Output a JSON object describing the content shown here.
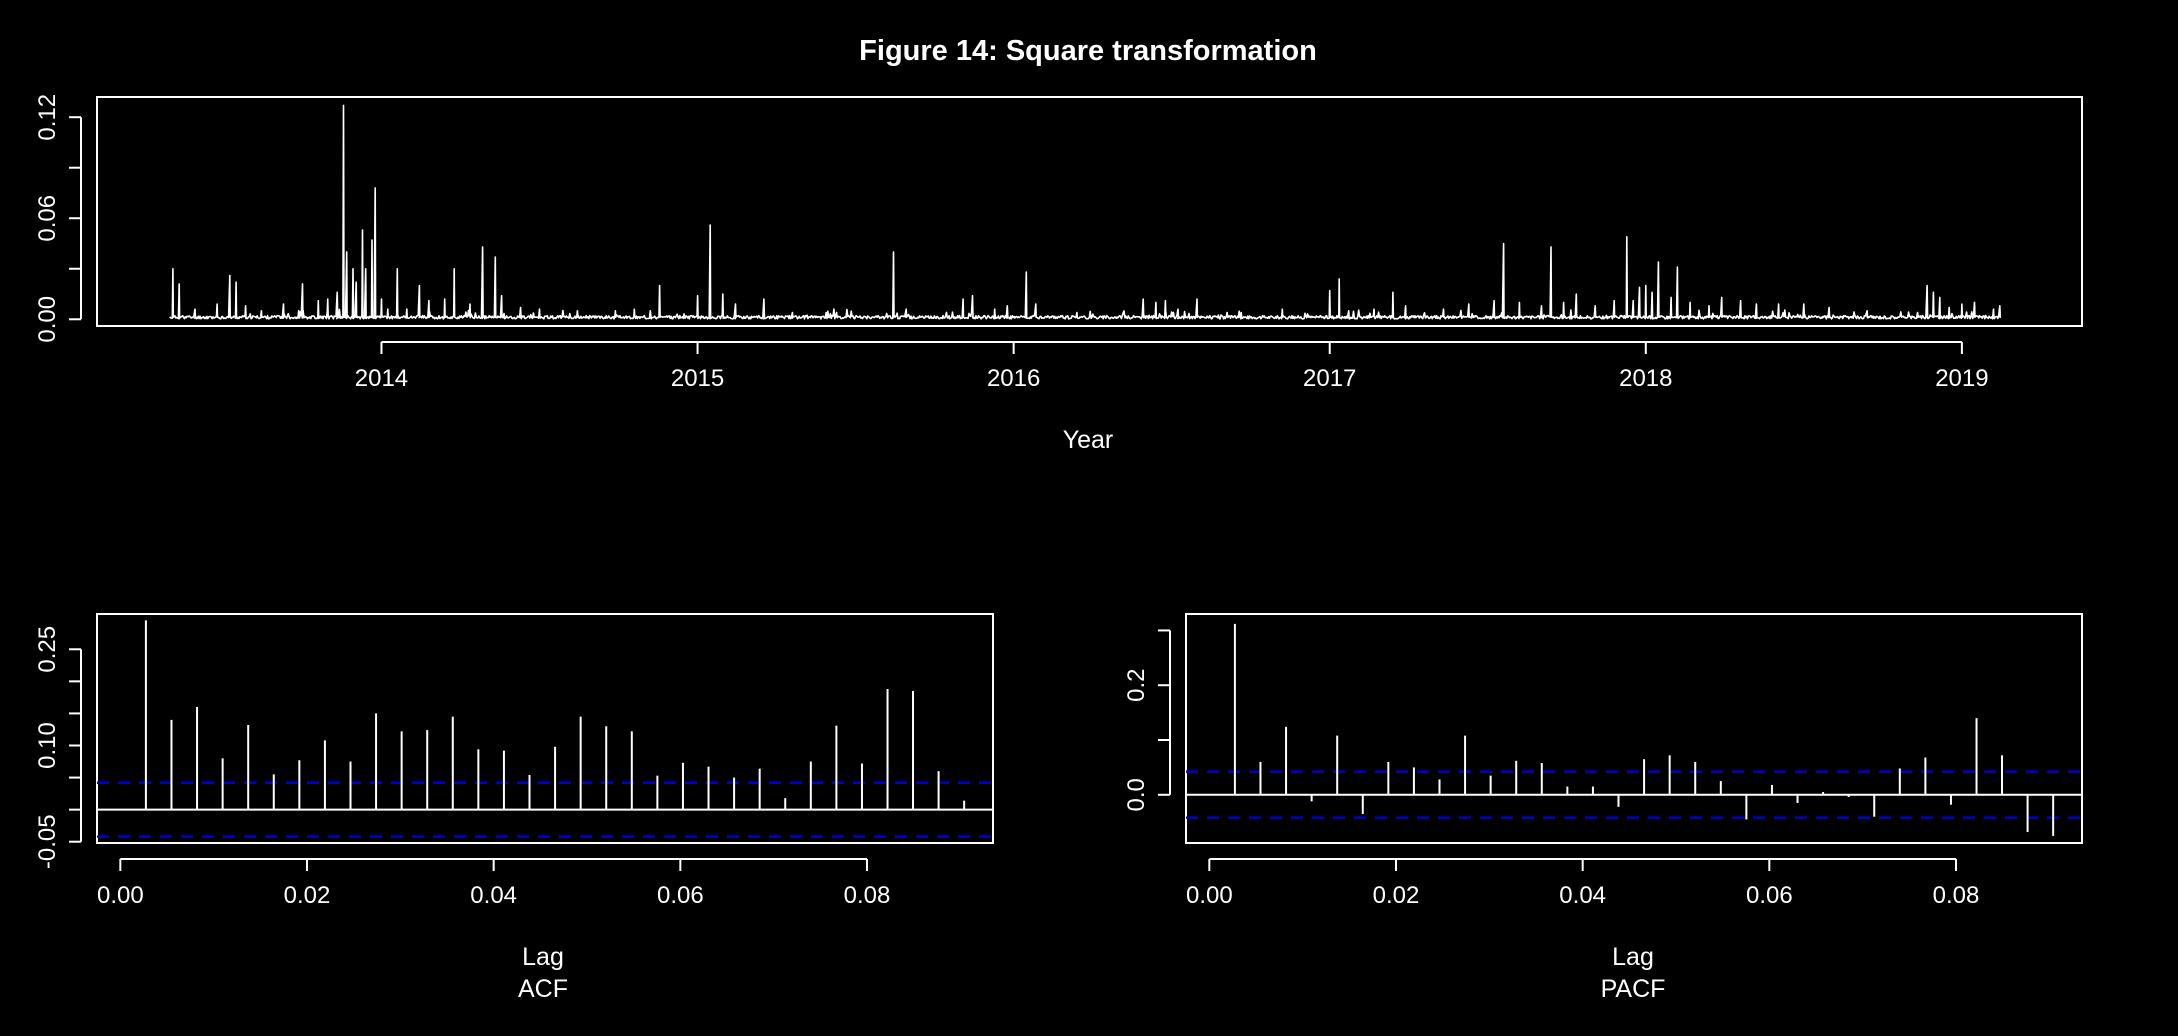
{
  "figure": {
    "title": "Figure  14: Square transformation",
    "background": "#000000",
    "foreground": "#ffffff",
    "ci_color": "#0000cc"
  },
  "chart_data": [
    {
      "type": "line",
      "name": "series",
      "xlabel": "Year",
      "ylabel": "",
      "xlim": [
        2013.1,
        2019.38
      ],
      "ylim": [
        -0.004,
        0.132
      ],
      "xticks": [
        2014,
        2015,
        2016,
        2017,
        2018,
        2019
      ],
      "xtick_labels": [
        "2014",
        "2015",
        "2016",
        "2017",
        "2018",
        "2019"
      ],
      "yticks": [
        0.0,
        0.03,
        0.06,
        0.09,
        0.12
      ],
      "ytick_labels": [
        "0.00",
        "",
        "0.06",
        "",
        "0.12"
      ],
      "x_range": [
        2013.33,
        2019.12
      ],
      "baseline": 0.0012,
      "spikes": [
        [
          2013.34,
          0.03
        ],
        [
          2013.36,
          0.021
        ],
        [
          2013.41,
          0.006
        ],
        [
          2013.48,
          0.009
        ],
        [
          2013.52,
          0.026
        ],
        [
          2013.54,
          0.022
        ],
        [
          2013.57,
          0.008
        ],
        [
          2013.62,
          0.005
        ],
        [
          2013.69,
          0.009
        ],
        [
          2013.75,
          0.021
        ],
        [
          2013.8,
          0.011
        ],
        [
          2013.83,
          0.012
        ],
        [
          2013.86,
          0.016
        ],
        [
          2013.88,
          0.127
        ],
        [
          2013.89,
          0.04
        ],
        [
          2013.91,
          0.03
        ],
        [
          2013.92,
          0.022
        ],
        [
          2013.94,
          0.053
        ],
        [
          2013.95,
          0.03
        ],
        [
          2013.97,
          0.047
        ],
        [
          2013.98,
          0.078
        ],
        [
          2014.0,
          0.012
        ],
        [
          2014.02,
          0.006
        ],
        [
          2014.05,
          0.03
        ],
        [
          2014.08,
          0.006
        ],
        [
          2014.12,
          0.02
        ],
        [
          2014.15,
          0.011
        ],
        [
          2014.2,
          0.012
        ],
        [
          2014.23,
          0.03
        ],
        [
          2014.28,
          0.009
        ],
        [
          2014.32,
          0.043
        ],
        [
          2014.36,
          0.037
        ],
        [
          2014.38,
          0.014
        ],
        [
          2014.44,
          0.007
        ],
        [
          2014.5,
          0.006
        ],
        [
          2014.62,
          0.005
        ],
        [
          2014.74,
          0.005
        ],
        [
          2014.8,
          0.006
        ],
        [
          2014.88,
          0.02
        ],
        [
          2015.0,
          0.014
        ],
        [
          2015.04,
          0.056
        ],
        [
          2015.08,
          0.015
        ],
        [
          2015.12,
          0.009
        ],
        [
          2015.21,
          0.012
        ],
        [
          2015.3,
          0.004
        ],
        [
          2015.44,
          0.004
        ],
        [
          2015.62,
          0.04
        ],
        [
          2015.66,
          0.006
        ],
        [
          2015.84,
          0.012
        ],
        [
          2015.87,
          0.014
        ],
        [
          2015.94,
          0.006
        ],
        [
          2015.98,
          0.008
        ],
        [
          2016.04,
          0.028
        ],
        [
          2016.07,
          0.009
        ],
        [
          2016.2,
          0.004
        ],
        [
          2016.41,
          0.012
        ],
        [
          2016.45,
          0.01
        ],
        [
          2016.48,
          0.011
        ],
        [
          2016.52,
          0.006
        ],
        [
          2016.58,
          0.012
        ],
        [
          2016.72,
          0.004
        ],
        [
          2016.85,
          0.006
        ],
        [
          2017.0,
          0.017
        ],
        [
          2017.03,
          0.024
        ],
        [
          2017.06,
          0.005
        ],
        [
          2017.14,
          0.006
        ],
        [
          2017.2,
          0.016
        ],
        [
          2017.24,
          0.008
        ],
        [
          2017.36,
          0.006
        ],
        [
          2017.44,
          0.009
        ],
        [
          2017.52,
          0.011
        ],
        [
          2017.55,
          0.045
        ],
        [
          2017.6,
          0.01
        ],
        [
          2017.67,
          0.008
        ],
        [
          2017.7,
          0.043
        ],
        [
          2017.74,
          0.01
        ],
        [
          2017.78,
          0.015
        ],
        [
          2017.84,
          0.008
        ],
        [
          2017.9,
          0.011
        ],
        [
          2017.94,
          0.049
        ],
        [
          2017.96,
          0.011
        ],
        [
          2017.98,
          0.019
        ],
        [
          2018.0,
          0.02
        ],
        [
          2018.02,
          0.016
        ],
        [
          2018.04,
          0.034
        ],
        [
          2018.08,
          0.013
        ],
        [
          2018.1,
          0.031
        ],
        [
          2018.14,
          0.01
        ],
        [
          2018.2,
          0.008
        ],
        [
          2018.24,
          0.013
        ],
        [
          2018.3,
          0.011
        ],
        [
          2018.35,
          0.009
        ],
        [
          2018.42,
          0.009
        ],
        [
          2018.5,
          0.009
        ],
        [
          2018.58,
          0.007
        ],
        [
          2018.7,
          0.005
        ],
        [
          2018.86,
          0.004
        ],
        [
          2018.89,
          0.02
        ],
        [
          2018.91,
          0.016
        ],
        [
          2018.93,
          0.013
        ],
        [
          2018.96,
          0.007
        ],
        [
          2019.0,
          0.009
        ],
        [
          2019.04,
          0.01
        ],
        [
          2019.1,
          0.006
        ],
        [
          2019.12,
          0.008
        ]
      ]
    },
    {
      "type": "bar",
      "name": "acf",
      "xlabel": "Lag",
      "caption": "ACF",
      "ylabel": "",
      "xlim": [
        -0.0025,
        0.0935
      ],
      "ylim": [
        -0.052,
        0.305
      ],
      "xticks": [
        0.0,
        0.02,
        0.04,
        0.06,
        0.08
      ],
      "xtick_labels": [
        "0.00",
        "0.02",
        "0.04",
        "0.06",
        "0.08"
      ],
      "yticks": [
        -0.05,
        0.0,
        0.05,
        0.1,
        0.15,
        0.2,
        0.25
      ],
      "ytick_labels": [
        "-0.05",
        "",
        "",
        "0.10",
        "",
        "",
        "0.25"
      ],
      "ci": 0.042,
      "lags": [
        0.00274,
        0.00548,
        0.00822,
        0.01096,
        0.0137,
        0.01644,
        0.01918,
        0.02192,
        0.02466,
        0.0274,
        0.03014,
        0.03288,
        0.03562,
        0.03836,
        0.0411,
        0.04384,
        0.04658,
        0.04932,
        0.05206,
        0.0548,
        0.05754,
        0.06028,
        0.06302,
        0.06576,
        0.0685,
        0.07124,
        0.07398,
        0.07672,
        0.07946,
        0.0822,
        0.08493,
        0.08767,
        0.09041
      ],
      "values": [
        0.295,
        0.14,
        0.16,
        0.08,
        0.132,
        0.055,
        0.077,
        0.108,
        0.075,
        0.15,
        0.122,
        0.124,
        0.145,
        0.094,
        0.092,
        0.054,
        0.098,
        0.145,
        0.13,
        0.122,
        0.053,
        0.073,
        0.067,
        0.05,
        0.064,
        0.018,
        0.075,
        0.131,
        0.072,
        0.188,
        0.185,
        0.06,
        0.014
      ]
    },
    {
      "type": "bar",
      "name": "pacf",
      "xlabel": "Lag",
      "caption": "PACF",
      "ylabel": "",
      "xlim": [
        -0.0025,
        0.0935
      ],
      "ylim": [
        -0.088,
        0.33
      ],
      "xticks": [
        0.0,
        0.02,
        0.04,
        0.06,
        0.08
      ],
      "xtick_labels": [
        "0.00",
        "0.02",
        "0.04",
        "0.06",
        "0.08"
      ],
      "yticks": [
        0.0,
        0.1,
        0.2,
        0.3
      ],
      "ytick_labels": [
        "0.0",
        "",
        "0.2",
        ""
      ],
      "ci": 0.042,
      "lags": [
        0.00274,
        0.00548,
        0.00822,
        0.01096,
        0.0137,
        0.01644,
        0.01918,
        0.02192,
        0.02466,
        0.0274,
        0.03014,
        0.03288,
        0.03562,
        0.03836,
        0.0411,
        0.04384,
        0.04658,
        0.04932,
        0.05206,
        0.0548,
        0.05754,
        0.06028,
        0.06302,
        0.06576,
        0.0685,
        0.07124,
        0.07398,
        0.07672,
        0.07946,
        0.0822,
        0.08493,
        0.08767,
        0.09041
      ],
      "values": [
        0.312,
        0.06,
        0.124,
        -0.012,
        0.108,
        -0.035,
        0.06,
        0.05,
        0.028,
        0.108,
        0.035,
        0.062,
        0.058,
        0.015,
        0.015,
        -0.022,
        0.065,
        0.072,
        0.06,
        0.025,
        -0.045,
        0.018,
        -0.015,
        0.005,
        -0.004,
        -0.04,
        0.048,
        0.068,
        -0.018,
        0.14,
        0.072,
        -0.068,
        -0.075
      ]
    }
  ]
}
